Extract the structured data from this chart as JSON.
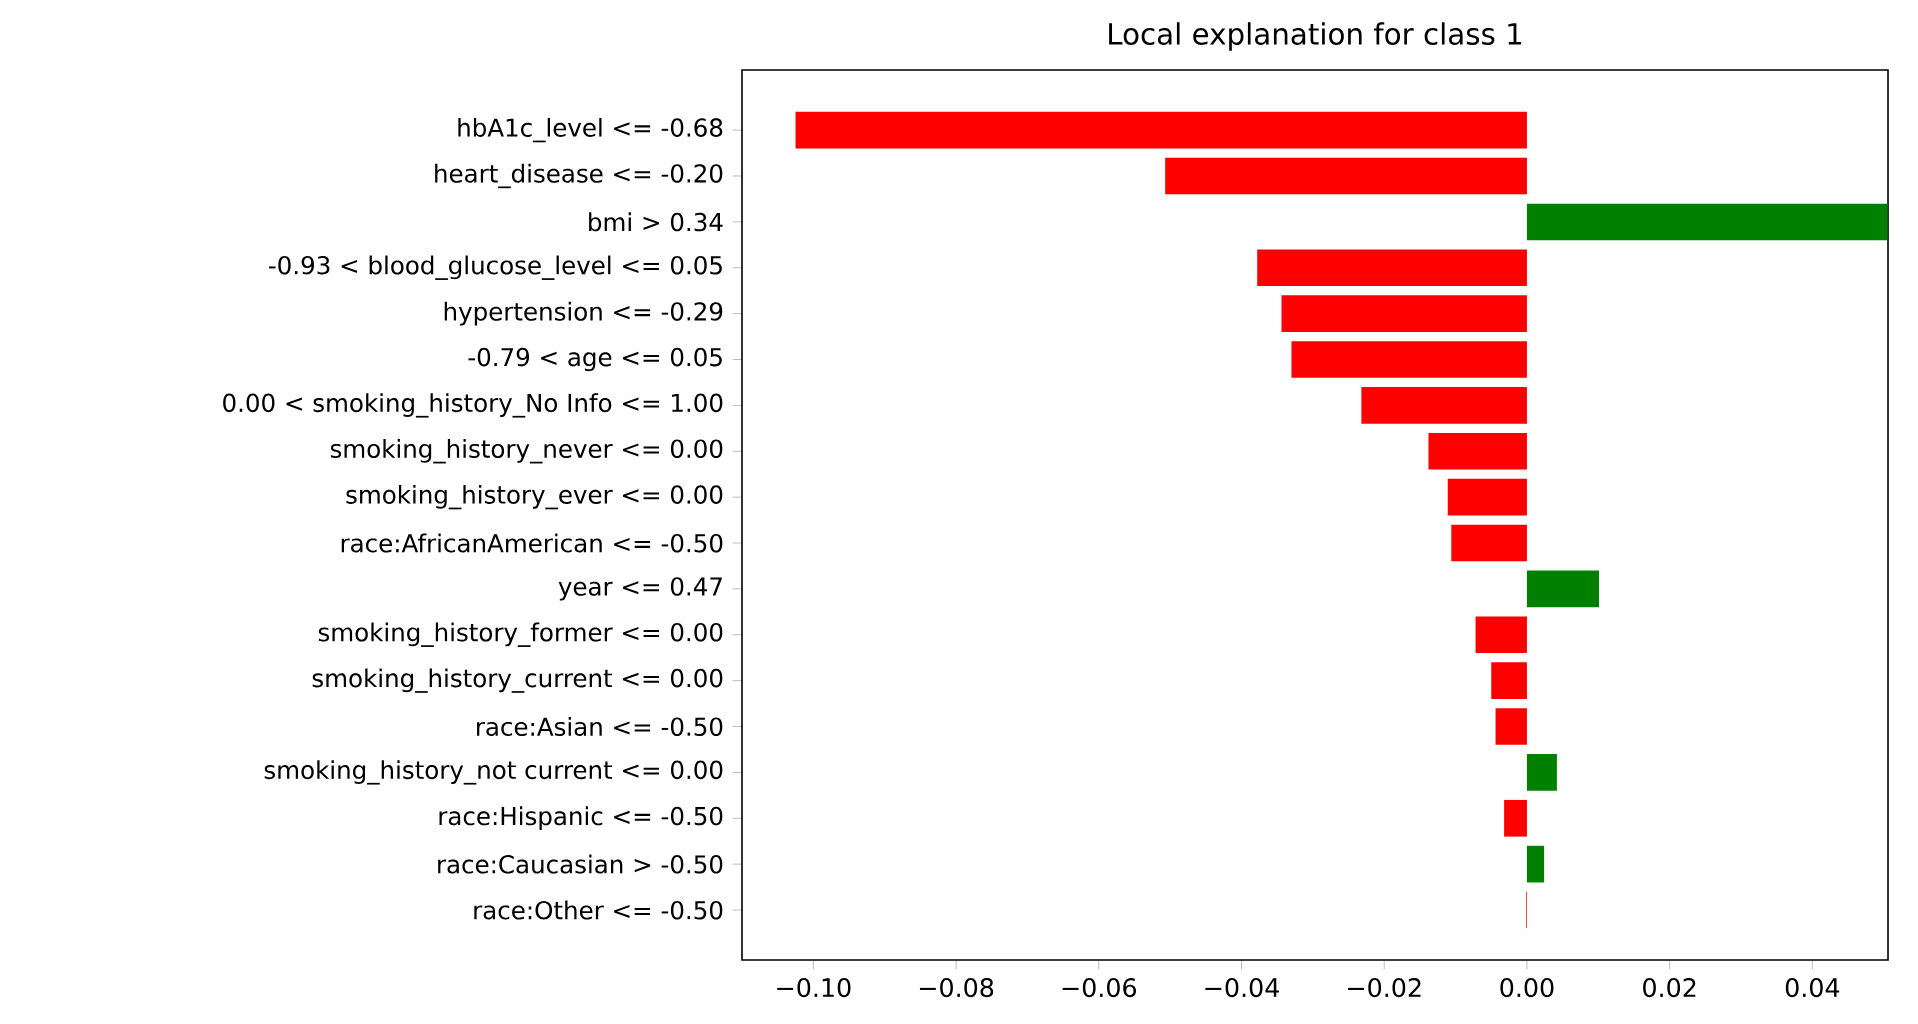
{
  "chart_data": {
    "type": "bar",
    "orientation": "horizontal",
    "title": "Local explanation for class 1",
    "categories": [
      "hbA1c_level <= -0.68",
      "heart_disease <= -0.20",
      "bmi > 0.34",
      "-0.93 < blood_glucose_level <= 0.05",
      "hypertension <= -0.29",
      "-0.79 < age <= 0.05",
      "0.00 < smoking_history_No Info <= 1.00",
      "smoking_history_never <= 0.00",
      "smoking_history_ever <= 0.00",
      "race:AfricanAmerican <= -0.50",
      "year <= 0.47",
      "smoking_history_former <= 0.00",
      "smoking_history_current <= 0.00",
      "race:Asian <= -0.50",
      "smoking_history_not current <= 0.00",
      "race:Hispanic <= -0.50",
      "race:Caucasian > -0.50",
      "race:Other <= -0.50"
    ],
    "values": [
      -0.1025,
      -0.0507,
      0.0505,
      -0.0378,
      -0.0344,
      -0.033,
      -0.0232,
      -0.0138,
      -0.0111,
      -0.0106,
      0.0101,
      -0.0072,
      -0.005,
      -0.0044,
      0.0042,
      -0.0032,
      0.0024,
      -0.0001
    ],
    "colors": [
      "#ff0000",
      "#ff0000",
      "#008000",
      "#ff0000",
      "#ff0000",
      "#ff0000",
      "#ff0000",
      "#ff0000",
      "#ff0000",
      "#ff0000",
      "#008000",
      "#ff0000",
      "#ff0000",
      "#ff0000",
      "#008000",
      "#ff0000",
      "#008000",
      "#ff0000"
    ],
    "xlim": [
      -0.11,
      0.0506
    ],
    "xticks": [
      {
        "value": -0.1,
        "label": "−0.10"
      },
      {
        "value": -0.08,
        "label": "−0.08"
      },
      {
        "value": -0.06,
        "label": "−0.06"
      },
      {
        "value": -0.04,
        "label": "−0.04"
      },
      {
        "value": -0.02,
        "label": "−0.02"
      },
      {
        "value": 0,
        "label": "0.00"
      },
      {
        "value": 0.02,
        "label": "0.02"
      },
      {
        "value": 0.04,
        "label": "0.04"
      }
    ]
  }
}
